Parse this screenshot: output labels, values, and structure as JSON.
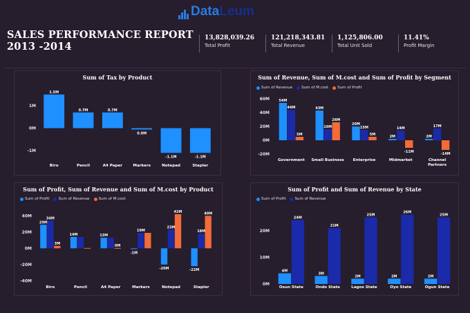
{
  "brand": {
    "name_part1": "Data",
    "name_part2": "Leum"
  },
  "report": {
    "title_line1": "SALES PERFORMANCE REPORT",
    "title_line2": "2013 -2014"
  },
  "kpis": [
    {
      "value": "13,828,039.26",
      "label": "Total Profit"
    },
    {
      "value": "121,218,343.81",
      "label": "Total Revenue"
    },
    {
      "value": "1,125,806.00",
      "label": "Total Unit Sold"
    },
    {
      "value": "11.41%",
      "label": "Profit Margin"
    }
  ],
  "colors": {
    "profit": "#1e90ff",
    "revenue": "#1a2aa8",
    "mcost": "#f26b38",
    "background": "#261d2d"
  },
  "chart_data": [
    {
      "id": "tax",
      "type": "bar",
      "title": "Sum of Tax by Product",
      "categories": [
        "Biro",
        "Pencil",
        "A4 Paper",
        "Markers",
        "Notepad",
        "Stapler"
      ],
      "series": [
        {
          "values": [
            1.5,
            0.7,
            0.7,
            -0.06,
            -1.1,
            -1.1
          ],
          "data_labels": [
            "1.5M",
            "0.7M",
            "0.7M",
            "0.0M",
            "-1.1M",
            "-1.1M"
          ]
        }
      ],
      "ylim": [
        -1.4,
        1.8
      ],
      "yticks": [
        -1,
        0,
        1
      ],
      "ytick_labels": [
        "-1M",
        "0M",
        "1M"
      ]
    },
    {
      "id": "segment",
      "type": "bar",
      "title": "Sum of Revenue, Sum of M.cost and Sum of Profit by Segment",
      "categories": [
        "Government",
        "Small Business",
        "Enterprise",
        "Midmarket",
        "Channel Partners"
      ],
      "series": [
        {
          "name": "Sum of Revenue",
          "color": "#1e90ff",
          "values": [
            54,
            43,
            20,
            2,
            2
          ],
          "data_labels": [
            "54M",
            "43M",
            "20M",
            "2M",
            "2M"
          ]
        },
        {
          "name": "Sum of M.cost",
          "color": "#1a2aa8",
          "values": [
            44,
            16,
            15,
            14,
            17
          ],
          "data_labels": [
            "44M",
            "16M",
            "15M",
            "14M",
            "17M"
          ]
        },
        {
          "name": "Sum of Profit",
          "color": "#f26b38",
          "values": [
            5,
            26,
            5,
            -11,
            -14
          ],
          "data_labels": [
            "5M",
            "26M",
            "5M",
            "-11M",
            "-14M"
          ]
        }
      ],
      "ylim": [
        -24,
        66
      ],
      "yticks": [
        -20,
        0,
        20,
        40,
        60
      ],
      "ytick_labels": [
        "-20M",
        "0M",
        "20M",
        "40M",
        "60M"
      ]
    },
    {
      "id": "product",
      "type": "bar",
      "title": "Sum of Profit, Sum of Revenue and Sum of M.cost by Product",
      "categories": [
        "Biro",
        "Pencil",
        "A4 Paper",
        "Markers",
        "Notepad",
        "Stapler"
      ],
      "series": [
        {
          "name": "Sum of Profit",
          "color": "#1e90ff",
          "values": [
            29,
            14,
            13,
            -1,
            -20,
            -22
          ],
          "data_labels": [
            "29M",
            "14M",
            "13M",
            "-1M",
            "-20M",
            "-22M"
          ]
        },
        {
          "name": "Sum of Revenue",
          "color": "#1a2aa8",
          "values": [
            34,
            14,
            13,
            19,
            23,
            18
          ],
          "data_labels": [
            "34M",
            "",
            "",
            "19M",
            "23M",
            "18M"
          ]
        },
        {
          "name": "Sum of M.cost",
          "color": "#f26b38",
          "values": [
            3,
            0.4,
            0.4,
            19,
            42,
            40
          ],
          "data_labels": [
            "3M",
            "",
            "0M",
            "",
            "42M",
            "40M"
          ]
        }
      ],
      "ylim": [
        -44,
        48
      ],
      "yticks": [
        -40,
        -20,
        0,
        20,
        40
      ],
      "ytick_labels": [
        "-40M",
        "-20M",
        "0M",
        "20M",
        "40M"
      ]
    },
    {
      "id": "state",
      "type": "bar",
      "title": "Sum of Profit and Sum of Revenue by State",
      "categories": [
        "Osun State",
        "Ondo State",
        "Lagos State",
        "Oyo State",
        "Ogun State"
      ],
      "series": [
        {
          "name": "Sum of Profit",
          "color": "#1e90ff",
          "values": [
            4,
            3,
            2,
            2,
            2
          ],
          "data_labels": [
            "4M",
            "3M",
            "2M",
            "2M",
            "2M"
          ]
        },
        {
          "name": "Sum of Revenue",
          "color": "#1a2aa8",
          "values": [
            24,
            21,
            25,
            26,
            25
          ],
          "data_labels": [
            "24M",
            "21M",
            "25M",
            "26M",
            "25M"
          ]
        }
      ],
      "ylim": [
        0,
        28
      ],
      "yticks": [
        0,
        10,
        20
      ],
      "ytick_labels": [
        "0M",
        "10M",
        "20M"
      ]
    }
  ]
}
